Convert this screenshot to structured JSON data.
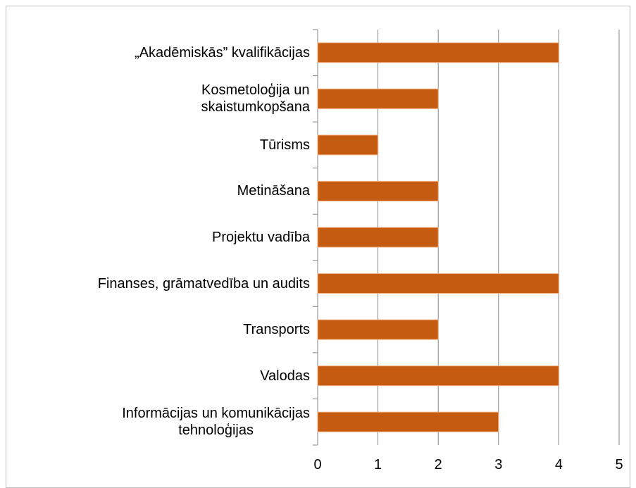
{
  "chart_data": {
    "type": "bar",
    "orientation": "horizontal",
    "categories": [
      "„Akadēmiskās” kvalifikācijas",
      "Kosmetoloģija un\nskaistumkopšana",
      "Tūrisms",
      "Metināšana",
      "Projektu vadība",
      "Finanses, grāmatvedība un audits",
      "Transports",
      "Valodas",
      "Informācijas un komunikācijas\ntehnoloģijas"
    ],
    "values": [
      4,
      2,
      1,
      2,
      2,
      4,
      2,
      4,
      3
    ],
    "color": "#c55a11",
    "xlim": [
      0,
      5
    ],
    "xticks": [
      0,
      1,
      2,
      3,
      4,
      5
    ],
    "grid": true
  }
}
